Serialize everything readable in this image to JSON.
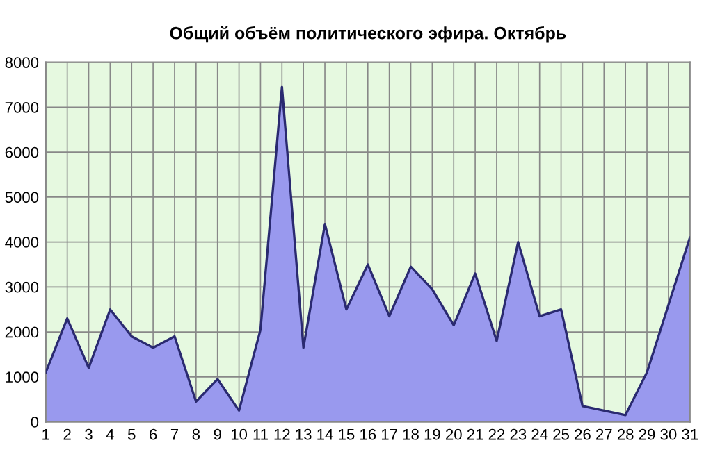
{
  "chart_data": {
    "type": "area",
    "title": "Общий объём политического эфира. Октябрь",
    "categories": [
      "1",
      "2",
      "3",
      "4",
      "5",
      "6",
      "7",
      "8",
      "9",
      "10",
      "11",
      "12",
      "13",
      "14",
      "15",
      "16",
      "17",
      "18",
      "19",
      "20",
      "21",
      "22",
      "23",
      "24",
      "25",
      "26",
      "27",
      "28",
      "29",
      "30",
      "31"
    ],
    "values": [
      1100,
      2300,
      1200,
      2500,
      1900,
      1650,
      1900,
      450,
      950,
      250,
      2050,
      7450,
      1650,
      4400,
      2500,
      3500,
      2350,
      3450,
      2950,
      2150,
      3300,
      1800,
      4000,
      2350,
      2500,
      350,
      250,
      150,
      1100,
      2600,
      4100
    ],
    "color": "#9999ee",
    "ylim": [
      0,
      8000
    ],
    "yticks": [
      0,
      1000,
      2000,
      3000,
      4000,
      5000,
      6000,
      7000,
      8000
    ],
    "grid": true,
    "legend": false
  }
}
